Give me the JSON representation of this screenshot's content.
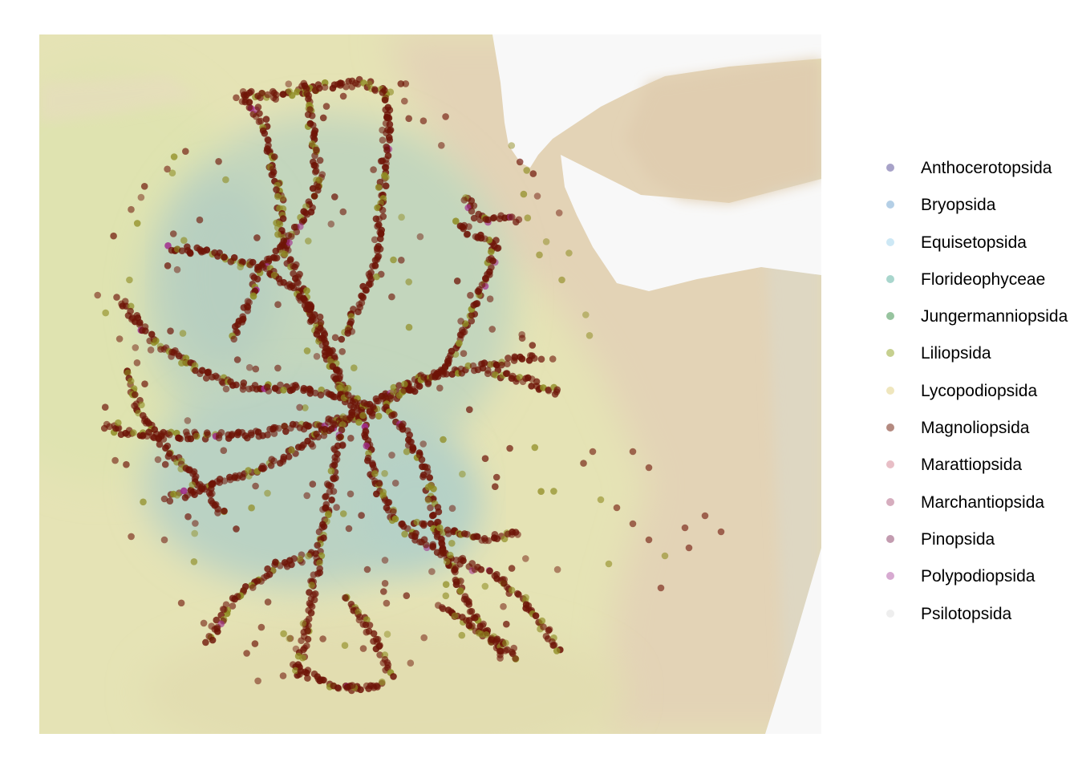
{
  "legend": {
    "items": [
      {
        "label": "Anthocerotopsida",
        "color": "#a7a2c8"
      },
      {
        "label": "Bryopsida",
        "color": "#b4cfe6"
      },
      {
        "label": "Equisetopsida",
        "color": "#cde8f5"
      },
      {
        "label": "Florideophyceae",
        "color": "#a9d6cd"
      },
      {
        "label": "Jungermanniopsida",
        "color": "#97c49f"
      },
      {
        "label": "Liliopsida",
        "color": "#c6d08f"
      },
      {
        "label": "Lycopodiopsida",
        "color": "#efe6bd"
      },
      {
        "label": "Magnoliopsida",
        "color": "#b48a80"
      },
      {
        "label": "Marattiopsida",
        "color": "#e8bec6"
      },
      {
        "label": "Marchantiopsida",
        "color": "#d6adbe"
      },
      {
        "label": "Pinopsida",
        "color": "#c39cb0"
      },
      {
        "label": "Polypodiopsida",
        "color": "#d7aad1"
      },
      {
        "label": "Psilotopsida",
        "color": "#eeeeee"
      }
    ]
  },
  "colors": {
    "magnoliopsida_point": "#6e1407",
    "liliopsida_point": "#8f8c22",
    "polypodiopsida_point": "#a02b8c",
    "sea": "#f8f8f8",
    "lowland": "#e6e4b4",
    "highland": "#b9d3c2",
    "desert": "#e4d1b4"
  }
}
